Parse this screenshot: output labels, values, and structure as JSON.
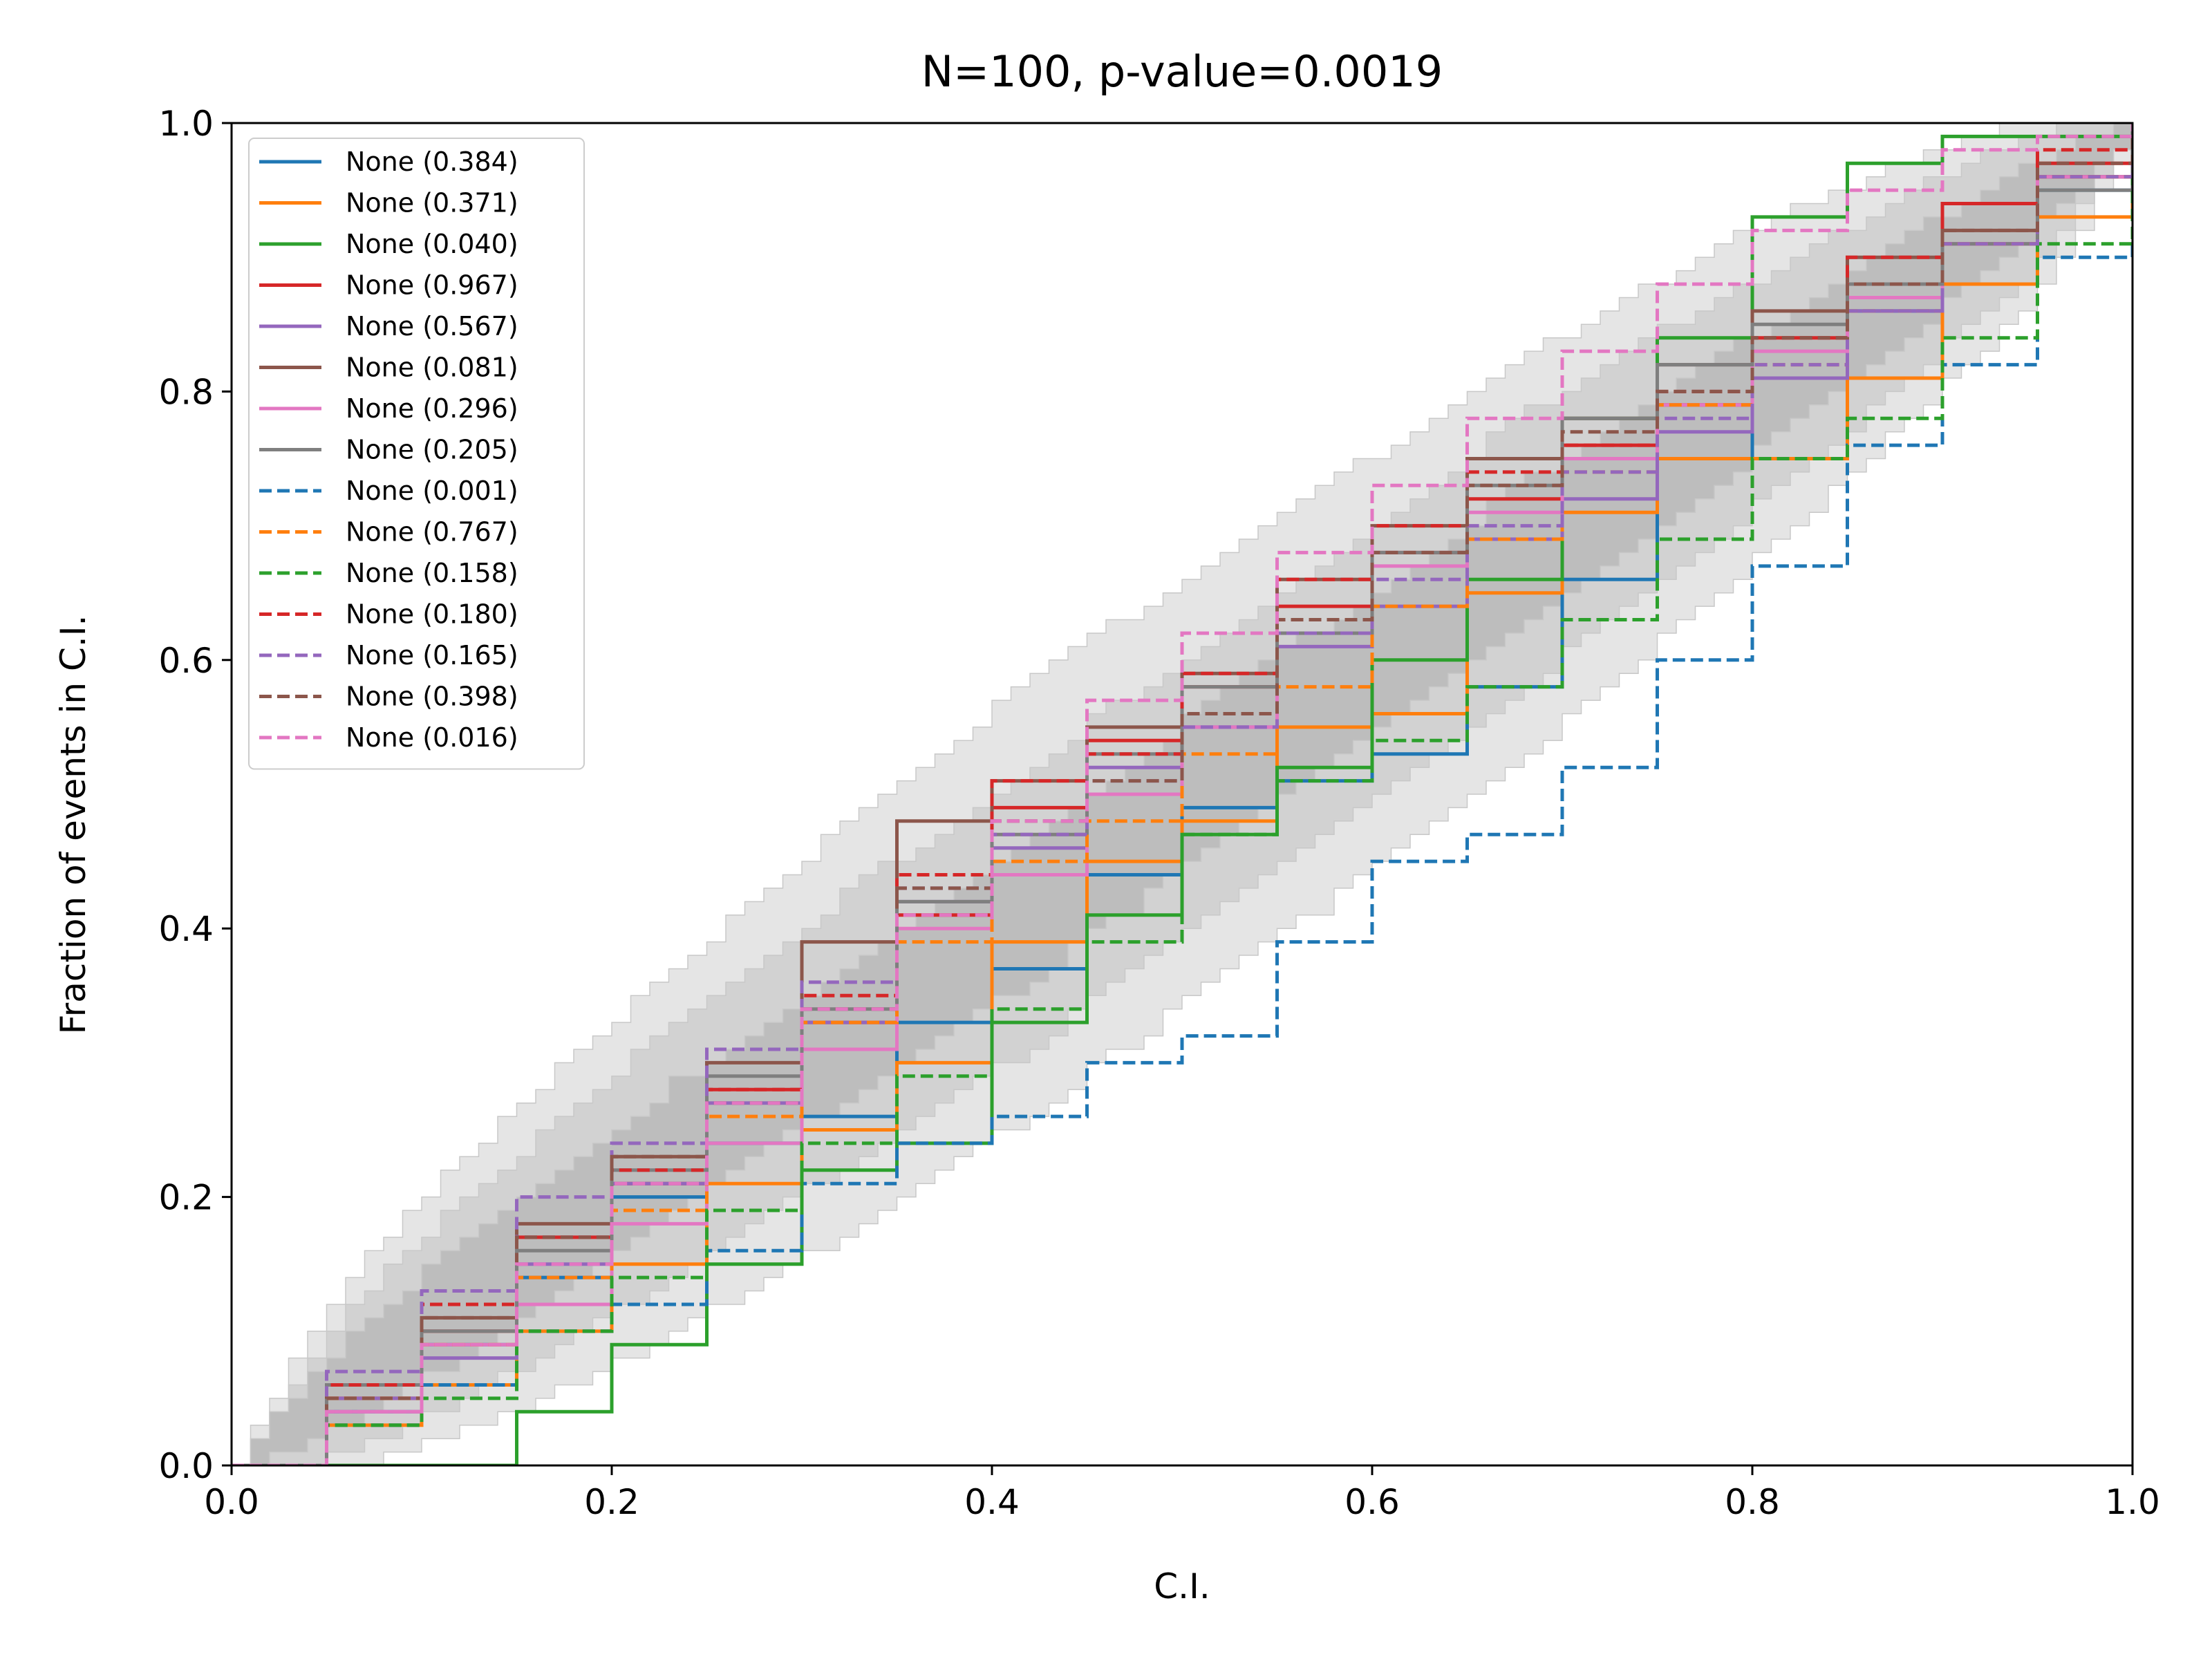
{
  "chart_data": {
    "type": "line",
    "title": "N=100, p-value=0.0019",
    "xlabel": "C.I.",
    "ylabel": "Fraction of events in C.I.",
    "xlim": [
      0.0,
      1.0
    ],
    "ylim": [
      0.0,
      1.0
    ],
    "x_ticks": [
      "0.0",
      "0.2",
      "0.4",
      "0.6",
      "0.8",
      "1.0"
    ],
    "y_ticks": [
      "0.0",
      "0.2",
      "0.4",
      "0.6",
      "0.8",
      "1.0"
    ],
    "grid": false,
    "legend_position": "upper-left",
    "n_events": 100,
    "bands": [
      {
        "level": "3-sigma",
        "color": "#e5e5e5",
        "x": [
          0,
          0.05,
          0.1,
          0.2,
          0.3,
          0.4,
          0.5,
          0.6,
          0.7,
          0.8,
          0.9,
          0.95,
          1.0
        ],
        "lower": [
          0,
          0.0,
          0.02,
          0.08,
          0.16,
          0.25,
          0.35,
          0.45,
          0.56,
          0.68,
          0.81,
          0.88,
          1.0
        ],
        "upper": [
          0,
          0.12,
          0.2,
          0.33,
          0.45,
          0.56,
          0.66,
          0.75,
          0.84,
          0.92,
          0.98,
          0.999,
          1.0
        ]
      },
      {
        "level": "2-sigma",
        "color": "#d2d2d2",
        "x": [
          0,
          0.05,
          0.1,
          0.2,
          0.3,
          0.4,
          0.5,
          0.6,
          0.7,
          0.8,
          0.9,
          0.95,
          1.0
        ],
        "lower": [
          0,
          0.01,
          0.04,
          0.12,
          0.21,
          0.3,
          0.4,
          0.5,
          0.61,
          0.72,
          0.84,
          0.9,
          1.0
        ],
        "upper": [
          0,
          0.1,
          0.17,
          0.29,
          0.4,
          0.5,
          0.6,
          0.7,
          0.8,
          0.88,
          0.96,
          0.99,
          1.0
        ]
      },
      {
        "level": "1-sigma",
        "color": "#bdbdbd",
        "x": [
          0,
          0.05,
          0.1,
          0.2,
          0.3,
          0.4,
          0.5,
          0.6,
          0.7,
          0.8,
          0.9,
          0.95,
          1.0
        ],
        "lower": [
          0,
          0.03,
          0.07,
          0.16,
          0.26,
          0.35,
          0.45,
          0.55,
          0.65,
          0.76,
          0.87,
          0.93,
          1.0
        ],
        "upper": [
          0,
          0.08,
          0.14,
          0.25,
          0.35,
          0.45,
          0.55,
          0.65,
          0.75,
          0.84,
          0.93,
          0.97,
          1.0
        ]
      }
    ],
    "series": [
      {
        "name": "None (0.384)",
        "color": "#1f77b4",
        "dash": "solid",
        "x": [
          0,
          0.05,
          0.1,
          0.15,
          0.2,
          0.25,
          0.3,
          0.35,
          0.4,
          0.45,
          0.5,
          0.55,
          0.6,
          0.65,
          0.7,
          0.75,
          0.8,
          0.85,
          0.9,
          0.95,
          1.0
        ],
        "y": [
          0,
          0.04,
          0.09,
          0.14,
          0.2,
          0.24,
          0.26,
          0.33,
          0.37,
          0.44,
          0.49,
          0.51,
          0.53,
          0.58,
          0.66,
          0.75,
          0.81,
          0.86,
          0.91,
          0.95,
          1.0
        ]
      },
      {
        "name": "None (0.371)",
        "color": "#ff7f0e",
        "dash": "solid",
        "x": [
          0,
          0.05,
          0.1,
          0.15,
          0.2,
          0.25,
          0.3,
          0.35,
          0.4,
          0.45,
          0.5,
          0.55,
          0.6,
          0.65,
          0.7,
          0.75,
          0.8,
          0.85,
          0.9,
          0.95,
          1.0
        ],
        "y": [
          0,
          0.03,
          0.06,
          0.1,
          0.15,
          0.21,
          0.25,
          0.3,
          0.39,
          0.45,
          0.48,
          0.55,
          0.56,
          0.65,
          0.71,
          0.75,
          0.75,
          0.81,
          0.88,
          0.93,
          1.0
        ]
      },
      {
        "name": "None (0.040)",
        "color": "#2ca02c",
        "dash": "solid",
        "x": [
          0,
          0.05,
          0.1,
          0.15,
          0.2,
          0.25,
          0.3,
          0.35,
          0.4,
          0.45,
          0.5,
          0.55,
          0.6,
          0.65,
          0.7,
          0.75,
          0.8,
          0.85,
          0.9,
          0.95,
          1.0
        ],
        "y": [
          0,
          0.0,
          0.0,
          0.04,
          0.09,
          0.15,
          0.22,
          0.24,
          0.33,
          0.41,
          0.47,
          0.52,
          0.6,
          0.66,
          0.78,
          0.84,
          0.93,
          0.97,
          0.99,
          0.99,
          1.0
        ]
      },
      {
        "name": "None (0.967)",
        "color": "#d62728",
        "dash": "solid",
        "x": [
          0,
          0.05,
          0.1,
          0.15,
          0.2,
          0.25,
          0.3,
          0.35,
          0.4,
          0.45,
          0.5,
          0.55,
          0.6,
          0.65,
          0.7,
          0.75,
          0.8,
          0.85,
          0.9,
          0.95,
          1.0
        ],
        "y": [
          0,
          0.05,
          0.1,
          0.17,
          0.21,
          0.28,
          0.33,
          0.41,
          0.49,
          0.54,
          0.58,
          0.64,
          0.68,
          0.72,
          0.76,
          0.79,
          0.84,
          0.88,
          0.94,
          0.97,
          1.0
        ]
      },
      {
        "name": "None (0.567)",
        "color": "#9467bd",
        "dash": "solid",
        "x": [
          0,
          0.05,
          0.1,
          0.15,
          0.2,
          0.25,
          0.3,
          0.35,
          0.4,
          0.45,
          0.5,
          0.55,
          0.6,
          0.65,
          0.7,
          0.75,
          0.8,
          0.85,
          0.9,
          0.95,
          1.0
        ],
        "y": [
          0,
          0.05,
          0.08,
          0.15,
          0.21,
          0.27,
          0.33,
          0.42,
          0.46,
          0.52,
          0.55,
          0.61,
          0.64,
          0.69,
          0.72,
          0.77,
          0.81,
          0.86,
          0.91,
          0.96,
          1.0
        ]
      },
      {
        "name": "None (0.081)",
        "color": "#8c564b",
        "dash": "solid",
        "x": [
          0,
          0.05,
          0.1,
          0.15,
          0.2,
          0.25,
          0.3,
          0.35,
          0.4,
          0.45,
          0.5,
          0.55,
          0.6,
          0.65,
          0.7,
          0.75,
          0.8,
          0.85,
          0.9,
          0.95,
          1.0
        ],
        "y": [
          0,
          0.06,
          0.11,
          0.18,
          0.23,
          0.3,
          0.39,
          0.48,
          0.51,
          0.55,
          0.59,
          0.66,
          0.7,
          0.75,
          0.78,
          0.82,
          0.86,
          0.9,
          0.92,
          0.96,
          1.0
        ]
      },
      {
        "name": "None (0.296)",
        "color": "#e377c2",
        "dash": "solid",
        "x": [
          0,
          0.05,
          0.1,
          0.15,
          0.2,
          0.25,
          0.3,
          0.35,
          0.4,
          0.45,
          0.5,
          0.55,
          0.6,
          0.65,
          0.7,
          0.75,
          0.8,
          0.85,
          0.9,
          0.95,
          1.0
        ],
        "y": [
          0,
          0.04,
          0.09,
          0.12,
          0.18,
          0.24,
          0.31,
          0.4,
          0.44,
          0.5,
          0.55,
          0.62,
          0.67,
          0.71,
          0.75,
          0.79,
          0.83,
          0.87,
          0.91,
          0.96,
          1.0
        ]
      },
      {
        "name": "None (0.205)",
        "color": "#7f7f7f",
        "dash": "solid",
        "x": [
          0,
          0.05,
          0.1,
          0.15,
          0.2,
          0.25,
          0.3,
          0.35,
          0.4,
          0.45,
          0.5,
          0.55,
          0.6,
          0.65,
          0.7,
          0.75,
          0.8,
          0.85,
          0.9,
          0.95,
          1.0
        ],
        "y": [
          0,
          0.06,
          0.1,
          0.16,
          0.22,
          0.29,
          0.34,
          0.42,
          0.47,
          0.53,
          0.58,
          0.62,
          0.68,
          0.73,
          0.78,
          0.82,
          0.85,
          0.88,
          0.91,
          0.95,
          1.0
        ]
      },
      {
        "name": "None (0.001)",
        "color": "#1f77b4",
        "dash": "dashed",
        "x": [
          0,
          0.05,
          0.1,
          0.15,
          0.2,
          0.25,
          0.3,
          0.35,
          0.4,
          0.45,
          0.5,
          0.55,
          0.6,
          0.65,
          0.7,
          0.75,
          0.8,
          0.85,
          0.9,
          0.95,
          1.0
        ],
        "y": [
          0,
          0.03,
          0.06,
          0.1,
          0.12,
          0.16,
          0.21,
          0.24,
          0.26,
          0.3,
          0.32,
          0.39,
          0.45,
          0.47,
          0.52,
          0.6,
          0.67,
          0.76,
          0.82,
          0.9,
          1.0
        ]
      },
      {
        "name": "None (0.767)",
        "color": "#ff7f0e",
        "dash": "dashed",
        "x": [
          0,
          0.05,
          0.1,
          0.15,
          0.2,
          0.25,
          0.3,
          0.35,
          0.4,
          0.45,
          0.5,
          0.55,
          0.6,
          0.65,
          0.7,
          0.75,
          0.8,
          0.85,
          0.9,
          0.95,
          1.0
        ],
        "y": [
          0,
          0.05,
          0.09,
          0.14,
          0.19,
          0.26,
          0.33,
          0.39,
          0.45,
          0.48,
          0.53,
          0.58,
          0.64,
          0.69,
          0.74,
          0.79,
          0.82,
          0.86,
          0.91,
          0.96,
          1.0
        ]
      },
      {
        "name": "None (0.158)",
        "color": "#2ca02c",
        "dash": "dashed",
        "x": [
          0,
          0.05,
          0.1,
          0.15,
          0.2,
          0.25,
          0.3,
          0.35,
          0.4,
          0.45,
          0.5,
          0.55,
          0.6,
          0.65,
          0.7,
          0.75,
          0.8,
          0.85,
          0.9,
          0.95,
          1.0
        ],
        "y": [
          0,
          0.03,
          0.05,
          0.1,
          0.14,
          0.19,
          0.24,
          0.29,
          0.34,
          0.39,
          0.47,
          0.51,
          0.54,
          0.58,
          0.63,
          0.69,
          0.75,
          0.78,
          0.84,
          0.91,
          1.0
        ]
      },
      {
        "name": "None (0.180)",
        "color": "#d62728",
        "dash": "dashed",
        "x": [
          0,
          0.05,
          0.1,
          0.15,
          0.2,
          0.25,
          0.3,
          0.35,
          0.4,
          0.45,
          0.5,
          0.55,
          0.6,
          0.65,
          0.7,
          0.75,
          0.8,
          0.85,
          0.9,
          0.95,
          1.0
        ],
        "y": [
          0,
          0.06,
          0.12,
          0.17,
          0.22,
          0.28,
          0.35,
          0.44,
          0.51,
          0.53,
          0.59,
          0.66,
          0.7,
          0.74,
          0.76,
          0.8,
          0.84,
          0.9,
          0.94,
          0.98,
          1.0
        ]
      },
      {
        "name": "None (0.165)",
        "color": "#9467bd",
        "dash": "dashed",
        "x": [
          0,
          0.05,
          0.1,
          0.15,
          0.2,
          0.25,
          0.3,
          0.35,
          0.4,
          0.45,
          0.5,
          0.55,
          0.6,
          0.65,
          0.7,
          0.75,
          0.8,
          0.85,
          0.9,
          0.95,
          1.0
        ],
        "y": [
          0,
          0.07,
          0.13,
          0.2,
          0.24,
          0.31,
          0.36,
          0.43,
          0.47,
          0.51,
          0.55,
          0.62,
          0.66,
          0.7,
          0.74,
          0.78,
          0.82,
          0.86,
          0.91,
          0.96,
          1.0
        ]
      },
      {
        "name": "None (0.398)",
        "color": "#8c564b",
        "dash": "dashed",
        "x": [
          0,
          0.05,
          0.1,
          0.15,
          0.2,
          0.25,
          0.3,
          0.35,
          0.4,
          0.45,
          0.5,
          0.55,
          0.6,
          0.65,
          0.7,
          0.75,
          0.8,
          0.85,
          0.9,
          0.95,
          1.0
        ],
        "y": [
          0,
          0.05,
          0.11,
          0.17,
          0.23,
          0.27,
          0.34,
          0.43,
          0.48,
          0.51,
          0.56,
          0.63,
          0.68,
          0.73,
          0.77,
          0.8,
          0.84,
          0.88,
          0.92,
          0.97,
          1.0
        ]
      },
      {
        "name": "None (0.016)",
        "color": "#e377c2",
        "dash": "dashed",
        "x": [
          0,
          0.05,
          0.1,
          0.15,
          0.2,
          0.25,
          0.3,
          0.35,
          0.4,
          0.45,
          0.5,
          0.55,
          0.6,
          0.65,
          0.7,
          0.75,
          0.8,
          0.85,
          0.9,
          0.95,
          1.0
        ],
        "y": [
          0,
          0.04,
          0.09,
          0.15,
          0.21,
          0.27,
          0.34,
          0.41,
          0.48,
          0.57,
          0.62,
          0.68,
          0.73,
          0.78,
          0.83,
          0.88,
          0.92,
          0.95,
          0.98,
          0.99,
          1.0
        ]
      }
    ]
  }
}
